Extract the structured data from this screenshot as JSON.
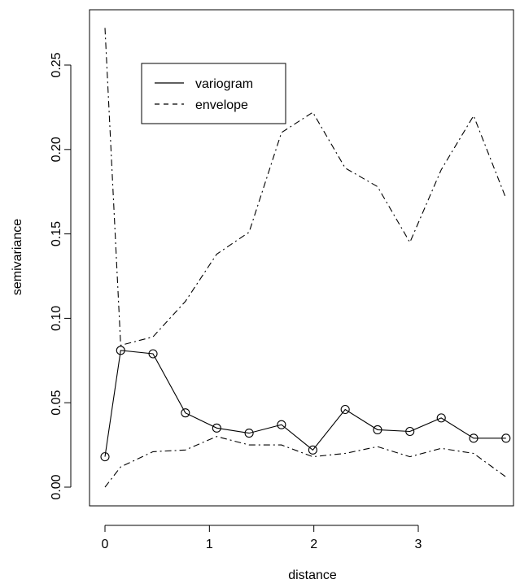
{
  "chart_data": {
    "type": "line",
    "title": "",
    "xlabel": "distance",
    "ylabel": "semivariance",
    "xlim": [
      -0.15,
      3.95
    ],
    "ylim": [
      -0.011,
      0.282
    ],
    "xticks": [
      0,
      1,
      2,
      3
    ],
    "xtick_labels": [
      "0",
      "1",
      "2",
      "3"
    ],
    "yticks": [
      0.0,
      0.05,
      0.1,
      0.15,
      0.2,
      0.25
    ],
    "ytick_labels": [
      "0.00",
      "0.05",
      "0.10",
      "0.15",
      "0.20",
      "0.25"
    ],
    "grid": false,
    "legend_position": "top-left",
    "legend": [
      {
        "label": "variogram",
        "line_style": "solid"
      },
      {
        "label": "envelope",
        "line_style": "dashed"
      }
    ],
    "series": [
      {
        "name": "variogram",
        "style": "solid-with-circles",
        "x": [
          0.0,
          0.15,
          0.46,
          0.77,
          1.07,
          1.38,
          1.69,
          1.99,
          2.3,
          2.61,
          2.92,
          3.22,
          3.53,
          3.84
        ],
        "y": [
          0.018,
          0.081,
          0.079,
          0.044,
          0.035,
          0.032,
          0.037,
          0.022,
          0.046,
          0.034,
          0.033,
          0.041,
          0.029,
          0.029
        ]
      },
      {
        "name": "envelope",
        "style": "dash-dot",
        "x": [
          0.0,
          0.15,
          0.46,
          0.77,
          1.07,
          1.38,
          1.69,
          1.99,
          2.3,
          2.61,
          2.92,
          3.22,
          3.53,
          3.84
        ],
        "y": [
          0.272,
          0.084,
          0.089,
          0.11,
          0.138,
          0.151,
          0.21,
          0.222,
          0.189,
          0.178,
          0.145,
          0.188,
          0.22,
          0.171
        ]
      },
      {
        "style": "dash-dot",
        "x": [
          0.0,
          0.15,
          0.46,
          0.77,
          1.07,
          1.38,
          1.69,
          1.99,
          2.3,
          2.61,
          2.92,
          3.22,
          3.53,
          3.84
        ],
        "y": [
          0.0,
          0.012,
          0.021,
          0.022,
          0.03,
          0.025,
          0.025,
          0.018,
          0.02,
          0.024,
          0.018,
          0.023,
          0.02,
          0.006
        ]
      }
    ]
  }
}
